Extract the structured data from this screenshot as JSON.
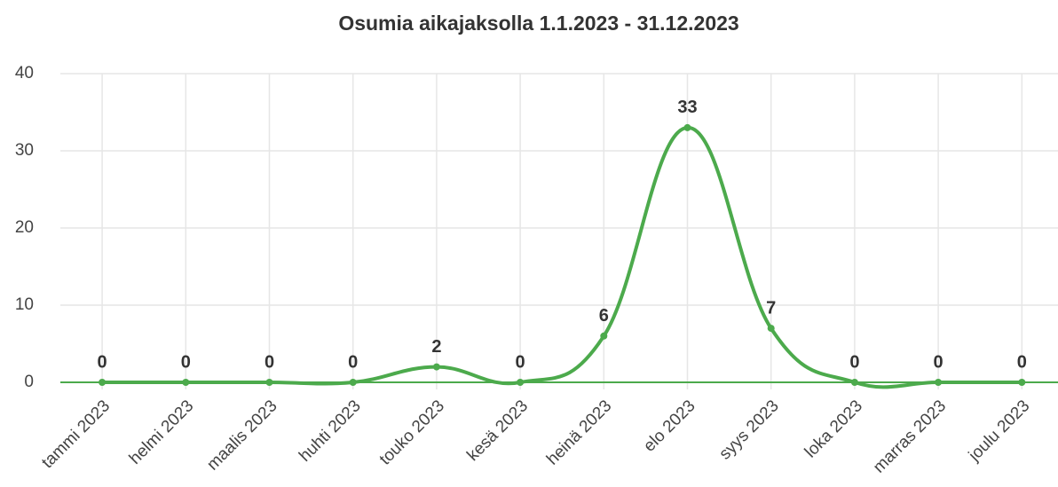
{
  "chart_data": {
    "type": "line",
    "title": "Osumia aikajaksolla 1.1.2023 - 31.12.2023",
    "categories": [
      "tammi 2023",
      "helmi 2023",
      "maalis 2023",
      "huhti 2023",
      "touko 2023",
      "kesä 2023",
      "heinä 2023",
      "elo 2023",
      "syys 2023",
      "loka 2023",
      "marras 2023",
      "joulu 2023"
    ],
    "series": [
      {
        "name": "Osumia",
        "color": "#4caa4c",
        "values": [
          0,
          0,
          0,
          0,
          2,
          0,
          6,
          33,
          7,
          0,
          0,
          0
        ]
      }
    ],
    "ylim": [
      0,
      40
    ],
    "yticks": [
      0,
      10,
      20,
      30,
      40
    ],
    "grid": true
  }
}
